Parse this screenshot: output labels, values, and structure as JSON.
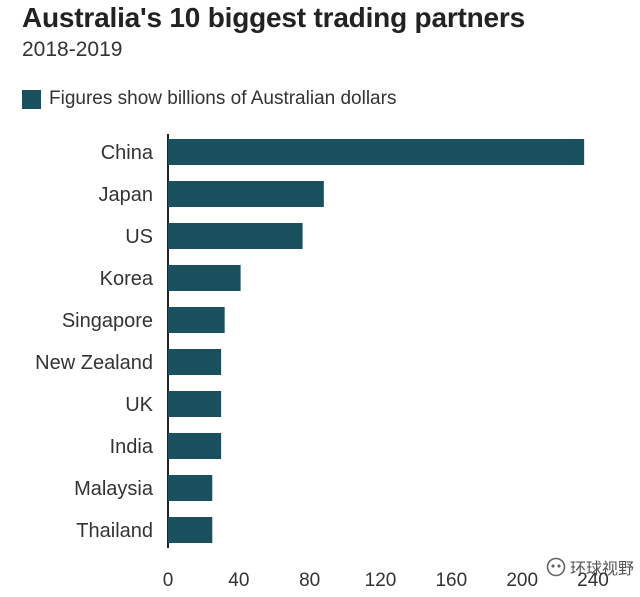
{
  "chart_data": {
    "type": "bar",
    "orientation": "horizontal",
    "title": "Australia's 10 biggest trading partners",
    "subtitle": "2018-2019",
    "legend": "Figures show billions of Australian dollars",
    "categories": [
      "China",
      "Japan",
      "US",
      "Korea",
      "Singapore",
      "New Zealand",
      "UK",
      "India",
      "Malaysia",
      "Thailand"
    ],
    "values": [
      235,
      88,
      76,
      41,
      32,
      30,
      30,
      30,
      25,
      25
    ],
    "xlim": [
      0,
      240
    ],
    "xticks": [
      "0",
      "40",
      "80",
      "120",
      "160",
      "200",
      "240"
    ],
    "grid": false,
    "bar_color": "#1a505e"
  },
  "watermark": {
    "text": "环球视野"
  }
}
